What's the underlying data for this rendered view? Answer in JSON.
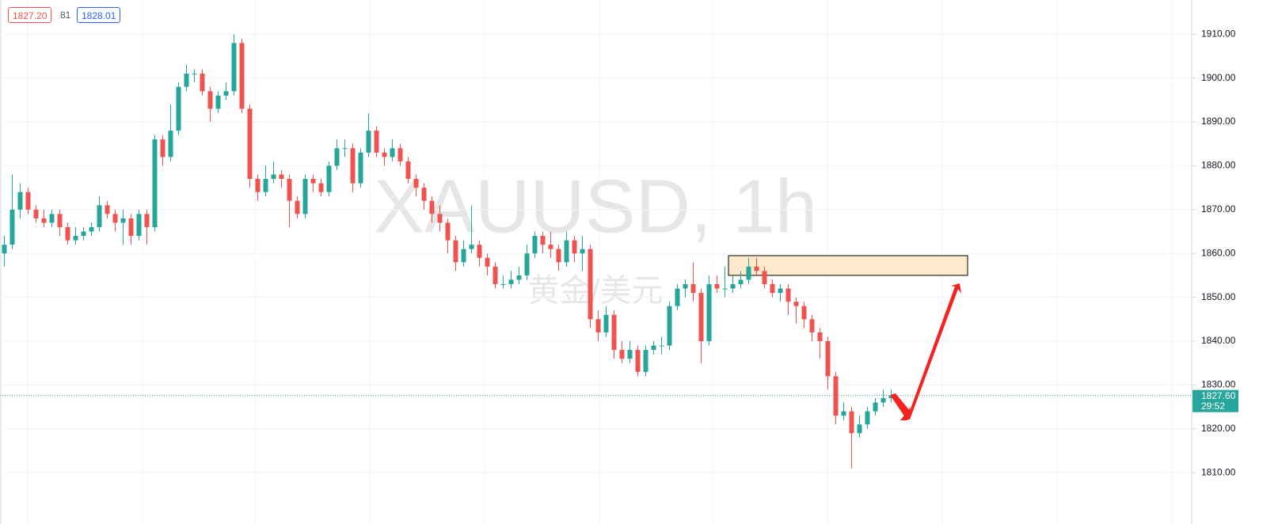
{
  "quote": {
    "bid": "1827.20",
    "spread": "81",
    "ask": "1828.01"
  },
  "chart_data": {
    "type": "candlestick",
    "watermark": "XAUUSD, 1h",
    "subtitle_watermark": "黄金/美元",
    "up_color": "#26a69a",
    "down_color": "#ef5350",
    "ylim": [
      1798.3,
      1917.8
    ],
    "yticks": [
      {
        "value": 1910,
        "label": "1910.00"
      },
      {
        "value": 1900,
        "label": "1900.00"
      },
      {
        "value": 1890,
        "label": "1890.00"
      },
      {
        "value": 1880,
        "label": "1880.00"
      },
      {
        "value": 1870,
        "label": "1870.00"
      },
      {
        "value": 1860,
        "label": "1860.00"
      },
      {
        "value": 1850,
        "label": "1850.00"
      },
      {
        "value": 1840,
        "label": "1840.00"
      },
      {
        "value": 1830,
        "label": "1830.00"
      },
      {
        "value": 1820,
        "label": "1820.00"
      },
      {
        "value": 1810,
        "label": "1810.00"
      }
    ],
    "grid": true,
    "last_price": {
      "value": 1827.6,
      "label": "1827.60"
    },
    "countdown": "29:52",
    "zone": {
      "low": 1855,
      "high": 1859.5,
      "color": "#fde9cc"
    },
    "ohlc": [
      [
        1860,
        1864,
        1857,
        1862
      ],
      [
        1862,
        1878,
        1861,
        1870
      ],
      [
        1870,
        1876,
        1868,
        1874
      ],
      [
        1874,
        1875,
        1869,
        1870
      ],
      [
        1870,
        1871,
        1867,
        1868
      ],
      [
        1868,
        1870,
        1866,
        1867
      ],
      [
        1867,
        1870,
        1866,
        1869
      ],
      [
        1869,
        1870,
        1864,
        1866
      ],
      [
        1866,
        1867,
        1862,
        1863
      ],
      [
        1863,
        1866,
        1862,
        1864
      ],
      [
        1864,
        1866,
        1863,
        1865
      ],
      [
        1865,
        1867,
        1864,
        1866
      ],
      [
        1866,
        1873,
        1865,
        1871
      ],
      [
        1871,
        1872,
        1868,
        1869
      ],
      [
        1869,
        1870,
        1865,
        1867
      ],
      [
        1867,
        1870,
        1862,
        1868
      ],
      [
        1868,
        1869,
        1862,
        1864
      ],
      [
        1864,
        1870,
        1863,
        1869
      ],
      [
        1869,
        1870,
        1862,
        1866
      ],
      [
        1866,
        1887,
        1865,
        1886
      ],
      [
        1886,
        1887,
        1880,
        1882
      ],
      [
        1882,
        1894,
        1881,
        1888
      ],
      [
        1888,
        1899,
        1887,
        1898
      ],
      [
        1898,
        1903,
        1897,
        1901
      ],
      [
        1901,
        1902,
        1899,
        1901
      ],
      [
        1901,
        1902,
        1896,
        1897
      ],
      [
        1897,
        1898,
        1890,
        1893
      ],
      [
        1893,
        1897,
        1892,
        1896
      ],
      [
        1896,
        1899,
        1895,
        1897
      ],
      [
        1897,
        1910,
        1896,
        1908
      ],
      [
        1908,
        1909,
        1892,
        1893
      ],
      [
        1893,
        1894,
        1875,
        1877
      ],
      [
        1877,
        1878,
        1872,
        1874
      ],
      [
        1874,
        1880,
        1873,
        1877
      ],
      [
        1877,
        1881,
        1876,
        1878
      ],
      [
        1878,
        1879,
        1875,
        1877
      ],
      [
        1877,
        1878,
        1866,
        1872
      ],
      [
        1872,
        1873,
        1868,
        1869
      ],
      [
        1869,
        1878,
        1868,
        1877
      ],
      [
        1877,
        1878,
        1874,
        1876
      ],
      [
        1876,
        1877,
        1873,
        1874
      ],
      [
        1874,
        1881,
        1873,
        1880
      ],
      [
        1880,
        1886,
        1879,
        1884
      ],
      [
        1884,
        1886,
        1882,
        1884
      ],
      [
        1884,
        1885,
        1874,
        1876
      ],
      [
        1876,
        1884,
        1875,
        1883
      ],
      [
        1883,
        1892,
        1882,
        1888
      ],
      [
        1888,
        1889,
        1882,
        1883
      ],
      [
        1883,
        1884,
        1880,
        1882
      ],
      [
        1882,
        1886,
        1881,
        1884
      ],
      [
        1884,
        1885,
        1880,
        1881
      ],
      [
        1881,
        1882,
        1876,
        1877
      ],
      [
        1877,
        1878,
        1873,
        1875
      ],
      [
        1875,
        1876,
        1870,
        1872
      ],
      [
        1872,
        1873,
        1867,
        1869
      ],
      [
        1869,
        1871,
        1865,
        1867
      ],
      [
        1867,
        1868,
        1860,
        1863
      ],
      [
        1863,
        1864,
        1856,
        1858
      ],
      [
        1858,
        1863,
        1857,
        1861
      ],
      [
        1861,
        1871,
        1860,
        1862
      ],
      [
        1862,
        1863,
        1857,
        1859
      ],
      [
        1859,
        1860,
        1855,
        1857
      ],
      [
        1857,
        1858,
        1852,
        1853
      ],
      [
        1853,
        1855,
        1852,
        1853
      ],
      [
        1853,
        1856,
        1852,
        1854
      ],
      [
        1854,
        1857,
        1853,
        1855
      ],
      [
        1855,
        1862,
        1854,
        1860
      ],
      [
        1860,
        1865,
        1859,
        1864
      ],
      [
        1864,
        1865,
        1860,
        1862
      ],
      [
        1862,
        1865,
        1859,
        1861
      ],
      [
        1861,
        1862,
        1856,
        1858
      ],
      [
        1858,
        1865,
        1857,
        1863
      ],
      [
        1863,
        1864,
        1858,
        1860
      ],
      [
        1860,
        1864,
        1856,
        1861
      ],
      [
        1861,
        1862,
        1843,
        1845
      ],
      [
        1845,
        1847,
        1840,
        1842
      ],
      [
        1842,
        1848,
        1841,
        1846
      ],
      [
        1846,
        1847,
        1836,
        1838
      ],
      [
        1838,
        1840,
        1835,
        1836
      ],
      [
        1836,
        1840,
        1835,
        1838
      ],
      [
        1838,
        1839,
        1832,
        1833
      ],
      [
        1833,
        1839,
        1832,
        1838
      ],
      [
        1838,
        1840,
        1837,
        1839
      ],
      [
        1839,
        1841,
        1837,
        1839
      ],
      [
        1839,
        1849,
        1838,
        1848
      ],
      [
        1848,
        1853,
        1847,
        1852
      ],
      [
        1852,
        1854,
        1850,
        1853
      ],
      [
        1853,
        1858,
        1849,
        1851
      ],
      [
        1851,
        1852,
        1835,
        1840
      ],
      [
        1840,
        1855,
        1839,
        1853
      ],
      [
        1853,
        1855,
        1851,
        1852
      ],
      [
        1852,
        1857,
        1850,
        1852
      ],
      [
        1852,
        1855,
        1851,
        1853
      ],
      [
        1853,
        1856,
        1852,
        1854
      ],
      [
        1854,
        1859,
        1853,
        1857
      ],
      [
        1857,
        1859,
        1855,
        1856
      ],
      [
        1856,
        1857,
        1852,
        1853
      ],
      [
        1853,
        1854,
        1850,
        1851
      ],
      [
        1851,
        1853,
        1849,
        1852
      ],
      [
        1852,
        1853,
        1846,
        1849
      ],
      [
        1849,
        1850,
        1844,
        1848
      ],
      [
        1848,
        1849,
        1843,
        1845
      ],
      [
        1845,
        1846,
        1840,
        1842
      ],
      [
        1842,
        1843,
        1836,
        1840
      ],
      [
        1840,
        1841,
        1829,
        1832
      ],
      [
        1832,
        1833,
        1821,
        1823
      ],
      [
        1823,
        1826,
        1822,
        1824
      ],
      [
        1824,
        1825,
        1811,
        1819
      ],
      [
        1819,
        1823,
        1818,
        1821
      ],
      [
        1821,
        1825,
        1820,
        1824
      ],
      [
        1824,
        1827,
        1823,
        1826
      ],
      [
        1826,
        1829,
        1825,
        1827
      ],
      [
        1827,
        1829,
        1826,
        1827.6
      ]
    ]
  }
}
